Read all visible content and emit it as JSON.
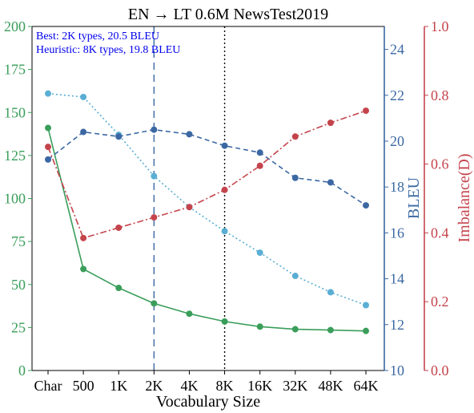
{
  "chart_data": {
    "type": "line",
    "title": "EN → LT 0.6M NewsTest2019",
    "xlabel": "Vocabulary Size",
    "categories": [
      "Char",
      "500",
      "1K",
      "2K",
      "4K",
      "8K",
      "16K",
      "32K",
      "48K",
      "64K"
    ],
    "annotations": [
      "Best: 2K types, 20.5 BLEU",
      "Heuristic: 8K types, 19.8 BLEU"
    ],
    "axes": {
      "left": {
        "ylim": [
          0,
          200
        ],
        "ticks": [
          "0",
          "25",
          "50",
          "75",
          "100",
          "125",
          "150",
          "175",
          "200"
        ],
        "tick_values": [
          0,
          25,
          50,
          75,
          100,
          125,
          150,
          175,
          200
        ],
        "color": "#3a9e5a"
      },
      "bleu": {
        "label": "BLEU",
        "ylim": [
          10,
          25
        ],
        "ticks": [
          "10",
          "12",
          "14",
          "16",
          "18",
          "20",
          "22",
          "24"
        ],
        "tick_values": [
          10,
          12,
          14,
          16,
          18,
          20,
          22,
          24
        ],
        "color": "#3b68a3"
      },
      "imbalance": {
        "label": "Imbalance(D)",
        "ylim": [
          0,
          1
        ],
        "ticks": [
          "0.0",
          "0.2",
          "0.4",
          "0.6",
          "0.8",
          "1.0"
        ],
        "tick_values": [
          0,
          0.2,
          0.4,
          0.6,
          0.8,
          1.0
        ],
        "color": "#c4444c"
      }
    },
    "vlines": [
      {
        "category": "2K",
        "style": "dashed",
        "color": "#3b68a3"
      },
      {
        "category": "8K",
        "style": "dotted",
        "color": "#000000"
      }
    ],
    "series": [
      {
        "axis": "left",
        "color": "#3a9e5a",
        "style": "solid",
        "values": [
          141,
          59,
          48,
          39,
          33,
          28.5,
          25.5,
          24,
          23.5,
          23
        ]
      },
      {
        "axis": "left",
        "color": "#5aaed3",
        "style": "dotted",
        "values": [
          161,
          159,
          137,
          113,
          95,
          81,
          68.5,
          55,
          45.5,
          38
        ]
      },
      {
        "axis": "bleu",
        "color": "#3b68a3",
        "style": "dashed",
        "values": [
          19.2,
          20.4,
          20.2,
          20.5,
          20.3,
          19.8,
          19.5,
          18.4,
          18.2,
          17.2
        ]
      },
      {
        "axis": "imbalance",
        "color": "#c4444c",
        "style": "dashdot",
        "values": [
          0.65,
          0.385,
          0.415,
          0.445,
          0.475,
          0.525,
          0.595,
          0.68,
          0.72,
          0.755
        ]
      }
    ]
  }
}
